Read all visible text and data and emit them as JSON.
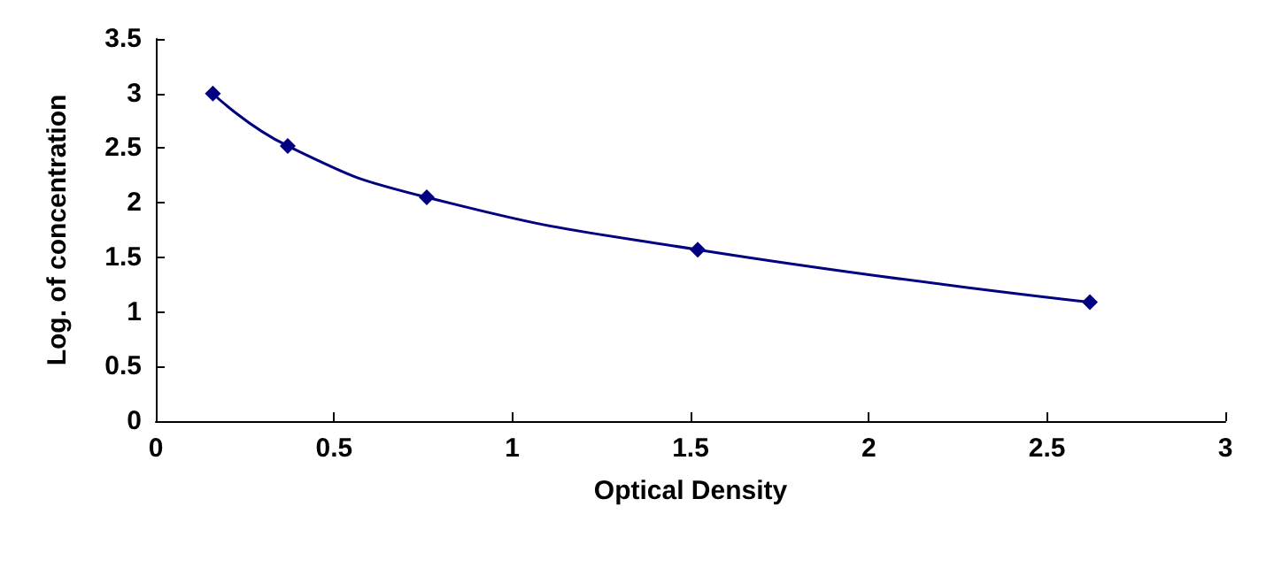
{
  "chart_data": {
    "type": "line",
    "xlabel": "Optical Density",
    "ylabel": "Log. of concentration",
    "x": [
      0.16,
      0.37,
      0.76,
      1.52,
      2.62
    ],
    "series": [
      {
        "color": "#000080",
        "values": [
          3.0,
          2.52,
          2.05,
          1.57,
          1.09
        ]
      }
    ],
    "xlim": [
      0,
      3
    ],
    "xticks": [
      0,
      0.5,
      1,
      1.5,
      2,
      2.5,
      3
    ],
    "ylim": [
      0,
      3.5
    ],
    "yticks": [
      0,
      0.5,
      1,
      1.5,
      2,
      2.5,
      3,
      3.5
    ],
    "grid": false,
    "marker": "diamond",
    "line_style": "solid"
  }
}
